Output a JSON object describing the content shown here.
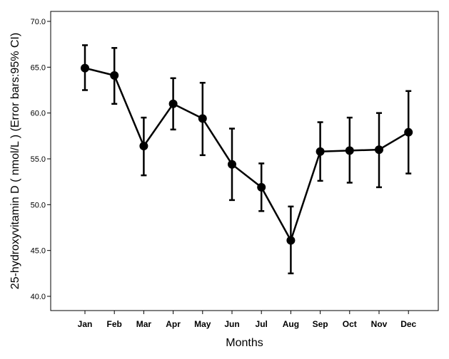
{
  "chart_data": {
    "type": "line",
    "categories": [
      "Jan",
      "Feb",
      "Mar",
      "Apr",
      "May",
      "Jun",
      "Jul",
      "Aug",
      "Sep",
      "Oct",
      "Nov",
      "Dec"
    ],
    "series": [
      {
        "values": [
          64.9,
          64.1,
          56.4,
          61.0,
          59.4,
          54.4,
          51.9,
          46.1,
          55.8,
          55.9,
          56.0,
          57.9
        ],
        "ci_lower": [
          62.5,
          61.0,
          53.2,
          58.2,
          55.4,
          50.5,
          49.3,
          42.5,
          52.6,
          52.4,
          51.9,
          53.4
        ],
        "ci_upper": [
          67.4,
          67.1,
          59.5,
          63.8,
          63.3,
          58.3,
          54.5,
          49.8,
          59.0,
          59.5,
          60.0,
          62.4
        ]
      }
    ],
    "xlabel": "Months",
    "ylabel": "25-hydroxyvitamin D ( nmol/L ) (Error bars:95% CI)",
    "ylim": [
      40.0,
      70.0
    ],
    "yticks": [
      "40.0",
      "45.0",
      "50.0",
      "55.0",
      "60.0",
      "65.0",
      "70.0"
    ],
    "grid": false,
    "legend": "none",
    "colors": {
      "line": "#000000",
      "marker": "#000000",
      "axis": "#000000",
      "background": "#ffffff"
    }
  }
}
